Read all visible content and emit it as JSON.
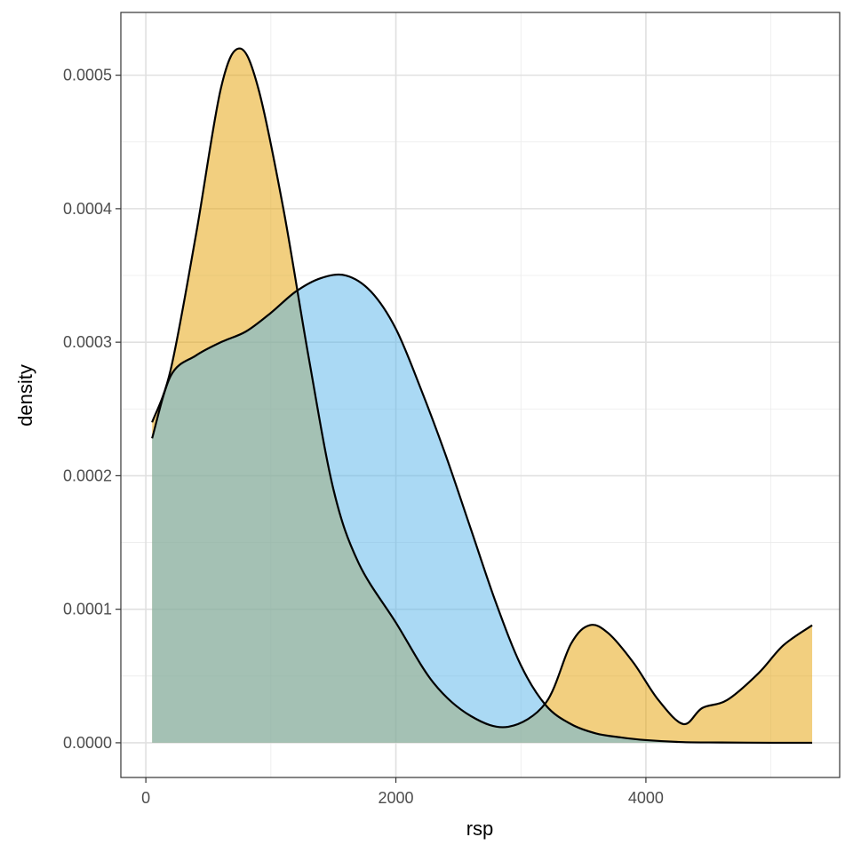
{
  "chart_data": {
    "type": "area",
    "xlabel": "rsp",
    "ylabel": "density",
    "xlim": [
      -200,
      5550
    ],
    "ylim": [
      -2.6e-05,
      0.000547
    ],
    "x_ticks": [
      0,
      2000,
      4000
    ],
    "x_tick_labels": [
      "0",
      "2000",
      "4000"
    ],
    "y_ticks": [
      0,
      0.0001,
      0.0002,
      0.0003,
      0.0004,
      0.0005
    ],
    "y_tick_labels": [
      "0.0000",
      "0.0001",
      "0.0002",
      "0.0003",
      "0.0004",
      "0.0005"
    ],
    "grid": true,
    "legend": "none",
    "series": [
      {
        "color": "#E69F00",
        "x": [
          50,
          200,
          400,
          600,
          750,
          900,
          1100,
          1300,
          1500,
          1700,
          2000,
          2300,
          2600,
          2900,
          3200,
          3400,
          3550,
          3700,
          3900,
          4100,
          4300,
          4450,
          4650,
          4900,
          5100,
          5330
        ],
        "values": [
          0.00024,
          0.00028,
          0.00038,
          0.00049,
          0.00052,
          0.00049,
          0.0004,
          0.00029,
          0.00019,
          0.000135,
          9e-05,
          4.5e-05,
          2e-05,
          1.2e-05,
          3e-05,
          7.4e-05,
          8.8e-05,
          8.2e-05,
          6e-05,
          3.2e-05,
          1.4e-05,
          2.6e-05,
          3.2e-05,
          5.2e-05,
          7.3e-05,
          8.8e-05
        ]
      },
      {
        "color": "#56B4E9",
        "x": [
          50,
          200,
          400,
          600,
          800,
          1000,
          1200,
          1400,
          1600,
          1800,
          2000,
          2200,
          2400,
          2600,
          2800,
          3000,
          3200,
          3400,
          3600,
          3800,
          4000,
          4300,
          4600,
          5000,
          5330
        ],
        "values": [
          0.000228,
          0.000275,
          0.00029,
          0.0003,
          0.000308,
          0.000322,
          0.000338,
          0.000348,
          0.00035,
          0.000338,
          0.00031,
          0.000265,
          0.000215,
          0.00016,
          0.000105,
          5.8e-05,
          2.8e-05,
          1.4e-05,
          7e-06,
          4e-06,
          2e-06,
          5e-07,
          2e-07,
          0.0,
          0.0
        ]
      }
    ]
  }
}
